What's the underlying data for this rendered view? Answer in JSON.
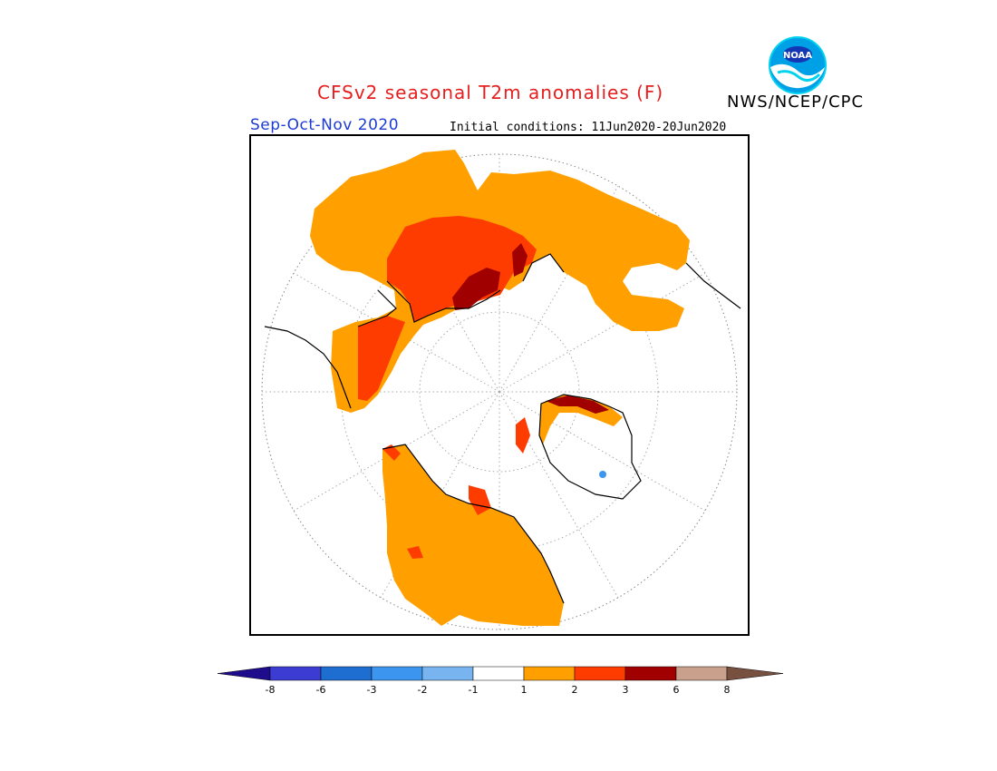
{
  "header": {
    "title": "CFSv2 seasonal T2m anomalies (F)",
    "org": "NWS/NCEP/CPC",
    "logo_text": "NOAA",
    "season": "Sep-Oct-Nov 2020",
    "initial_conditions": "Initial conditions: 11Jun2020-20Jun2020"
  },
  "colorbar": {
    "ticks": [
      "-8",
      "-6",
      "-3",
      "-2",
      "-1",
      "1",
      "2",
      "3",
      "6",
      "8"
    ],
    "colors": [
      "#1e0c8c",
      "#3c3cd2",
      "#1e6ed2",
      "#3c96f0",
      "#78b4f0",
      "#ffffff",
      "#ffa000",
      "#ff3c00",
      "#a00000",
      "#c8a08c",
      "#785040"
    ]
  },
  "colors": {
    "title": "#e61e1e",
    "season": "#1e3cd2",
    "anomaly_1_2": "#ffa000",
    "anomaly_2_3": "#ff3c00",
    "anomaly_3_6": "#a00000"
  }
}
